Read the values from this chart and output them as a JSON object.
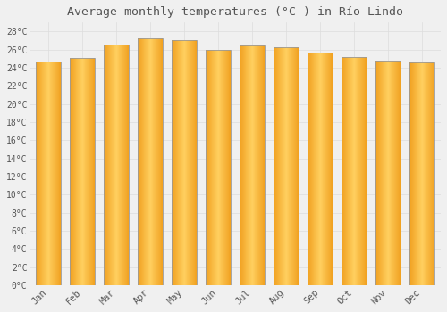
{
  "title": "Average monthly temperatures (°C ) in Río Lindo",
  "months": [
    "Jan",
    "Feb",
    "Mar",
    "Apr",
    "May",
    "Jun",
    "Jul",
    "Aug",
    "Sep",
    "Oct",
    "Nov",
    "Dec"
  ],
  "values": [
    24.7,
    25.1,
    26.6,
    27.3,
    27.1,
    26.0,
    26.5,
    26.3,
    25.7,
    25.2,
    24.8,
    24.6
  ],
  "bar_color_center": "#FFD060",
  "bar_color_edge": "#F0A020",
  "bar_edge_color": "#999999",
  "background_color": "#F0F0F0",
  "grid_color": "#DDDDDD",
  "text_color": "#555555",
  "ylim": [
    0,
    29
  ],
  "ytick_max": 28,
  "ytick_step": 2,
  "title_fontsize": 9.5,
  "bar_width": 0.75,
  "n_gradient": 60
}
